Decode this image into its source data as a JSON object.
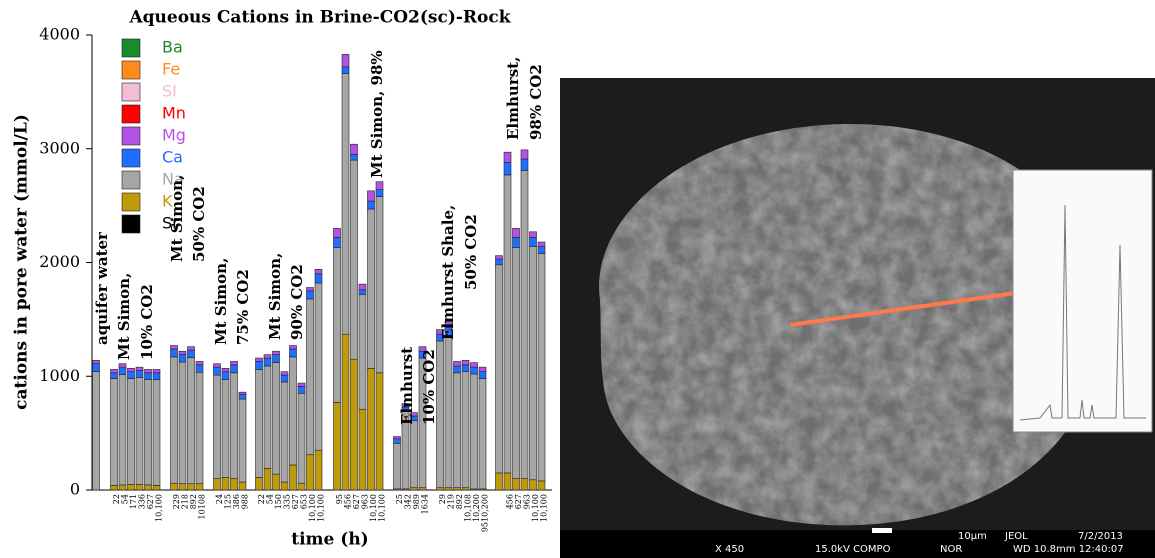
{
  "chart_data": {
    "type": "stacked_bar",
    "title": "Aqueous Cations in Brine-CO2(sc)-Rock",
    "ylabel": "cations in pore water (mmol/L)",
    "xlabel": "time (h)",
    "ylim": [
      0,
      4000
    ],
    "yticks": [
      0,
      1000,
      2000,
      3000,
      4000
    ],
    "categories": [
      null,
      "22",
      "54",
      "171",
      "336",
      "627",
      "10,100",
      "229",
      "218",
      "892",
      "10108",
      "24",
      "125",
      "386",
      "988",
      "22",
      "54",
      "150",
      "335",
      "627",
      "653",
      "10,100",
      "10,100",
      "95",
      "456",
      "627",
      "963",
      "10,100",
      "10,100",
      "25",
      "342",
      "989",
      "1634",
      "29",
      "219",
      "892",
      "10,108",
      "10,200",
      "9510,200",
      null,
      "456",
      "627",
      "963",
      "10,100",
      "10,100"
    ],
    "series": [
      {
        "name": "Sr",
        "color": "#000000",
        "values": [
          0,
          0,
          0,
          0,
          0,
          0,
          0,
          0,
          0,
          0,
          0,
          0,
          0,
          0,
          0,
          0,
          0,
          0,
          0,
          0,
          0,
          0,
          0,
          0,
          0,
          0,
          0,
          0,
          0,
          0,
          0,
          0,
          0,
          0,
          0,
          0,
          0,
          0,
          0,
          0,
          0,
          0,
          0,
          0,
          0
        ]
      },
      {
        "name": "K",
        "color": "#bf9a0a",
        "values": [
          0,
          40,
          45,
          50,
          50,
          45,
          40,
          60,
          55,
          55,
          55,
          100,
          110,
          100,
          70,
          110,
          190,
          140,
          70,
          220,
          60,
          310,
          350,
          770,
          1370,
          1150,
          710,
          1070,
          1030,
          10,
          10,
          20,
          20,
          20,
          20,
          20,
          20,
          10,
          10,
          150,
          150,
          100,
          100,
          90,
          80
        ]
      },
      {
        "name": "Na",
        "color": "#a6a6a6",
        "values": [
          1040,
          940,
          970,
          930,
          940,
          925,
          930,
          1110,
          1070,
          1110,
          980,
          910,
          860,
          930,
          730,
          950,
          900,
          980,
          880,
          950,
          790,
          1370,
          1470,
          1360,
          2290,
          1750,
          1010,
          1400,
          1550,
          400,
          680,
          590,
          1140,
          1290,
          1320,
          1010,
          1020,
          1010,
          970,
          1830,
          2620,
          2030,
          2710,
          2050,
          2000
        ]
      },
      {
        "name": "Ca",
        "color": "#1f6fff",
        "values": [
          70,
          50,
          60,
          60,
          60,
          60,
          60,
          70,
          65,
          65,
          65,
          70,
          70,
          70,
          40,
          70,
          70,
          70,
          60,
          70,
          60,
          70,
          80,
          90,
          60,
          50,
          40,
          70,
          60,
          40,
          40,
          40,
          60,
          60,
          90,
          60,
          60,
          60,
          60,
          50,
          110,
          90,
          100,
          80,
          60
        ]
      },
      {
        "name": "Mg",
        "color": "#b452e6",
        "values": [
          30,
          30,
          35,
          30,
          30,
          30,
          30,
          30,
          30,
          30,
          30,
          30,
          30,
          30,
          20,
          30,
          30,
          30,
          30,
          30,
          30,
          30,
          40,
          80,
          110,
          90,
          50,
          90,
          70,
          20,
          30,
          30,
          40,
          40,
          50,
          40,
          40,
          40,
          40,
          30,
          90,
          80,
          80,
          50,
          40
        ]
      },
      {
        "name": "Mn",
        "color": "#ff0000",
        "values": [
          0,
          0,
          0,
          0,
          0,
          0,
          0,
          0,
          0,
          0,
          0,
          0,
          0,
          0,
          0,
          0,
          0,
          0,
          0,
          0,
          0,
          0,
          0,
          0,
          0,
          0,
          0,
          0,
          0,
          0,
          0,
          0,
          0,
          0,
          0,
          0,
          0,
          0,
          0,
          0,
          0,
          0,
          0,
          0,
          0
        ]
      },
      {
        "name": "SI",
        "color": "#f2bdd6",
        "values": [
          0,
          0,
          0,
          0,
          0,
          0,
          0,
          0,
          0,
          0,
          0,
          0,
          0,
          0,
          0,
          0,
          0,
          0,
          0,
          0,
          0,
          0,
          0,
          0,
          0,
          0,
          0,
          0,
          0,
          0,
          0,
          0,
          0,
          0,
          0,
          0,
          0,
          0,
          0,
          0,
          0,
          0,
          0,
          0,
          0
        ]
      },
      {
        "name": "Fe",
        "color": "#ff8c1a",
        "values": [
          0,
          0,
          0,
          0,
          0,
          0,
          0,
          0,
          0,
          0,
          0,
          0,
          0,
          0,
          0,
          0,
          0,
          0,
          0,
          0,
          0,
          0,
          0,
          0,
          0,
          0,
          0,
          0,
          0,
          0,
          0,
          0,
          0,
          0,
          0,
          0,
          0,
          0,
          0,
          0,
          0,
          0,
          0,
          0,
          0
        ]
      },
      {
        "name": "Ba",
        "color": "#1a8a2a",
        "values": [
          0,
          0,
          0,
          0,
          0,
          0,
          0,
          0,
          0,
          0,
          0,
          0,
          0,
          0,
          0,
          0,
          0,
          0,
          0,
          0,
          0,
          0,
          0,
          0,
          0,
          0,
          0,
          0,
          0,
          0,
          0,
          0,
          0,
          0,
          0,
          0,
          0,
          0,
          0,
          0,
          0,
          0,
          0,
          0,
          0
        ]
      }
    ],
    "annotations": [
      [
        "aquifer water"
      ],
      [
        "Mt Simon,",
        "10% CO2"
      ],
      [
        "Mt Simon,",
        "50% CO2"
      ],
      [
        "Mt Simon,",
        "75% CO2"
      ],
      [
        "Mt Simon,",
        "90% CO2"
      ],
      [
        "Mt Simon, 98%"
      ],
      [
        "Elmhurst",
        "10% CO2"
      ],
      [
        "Elmhurst Shale,",
        "50% CO2"
      ],
      [
        "Elmhurst,",
        "98% CO2"
      ]
    ]
  },
  "sem_image": {
    "magnification": "X 450",
    "voltage": "15.0kV COMPO",
    "mode": "NOR",
    "working_distance": "WD 10.8mm 12:40:07",
    "scale": "10µm",
    "maker": "JEOL",
    "date": "7/2/2013"
  }
}
